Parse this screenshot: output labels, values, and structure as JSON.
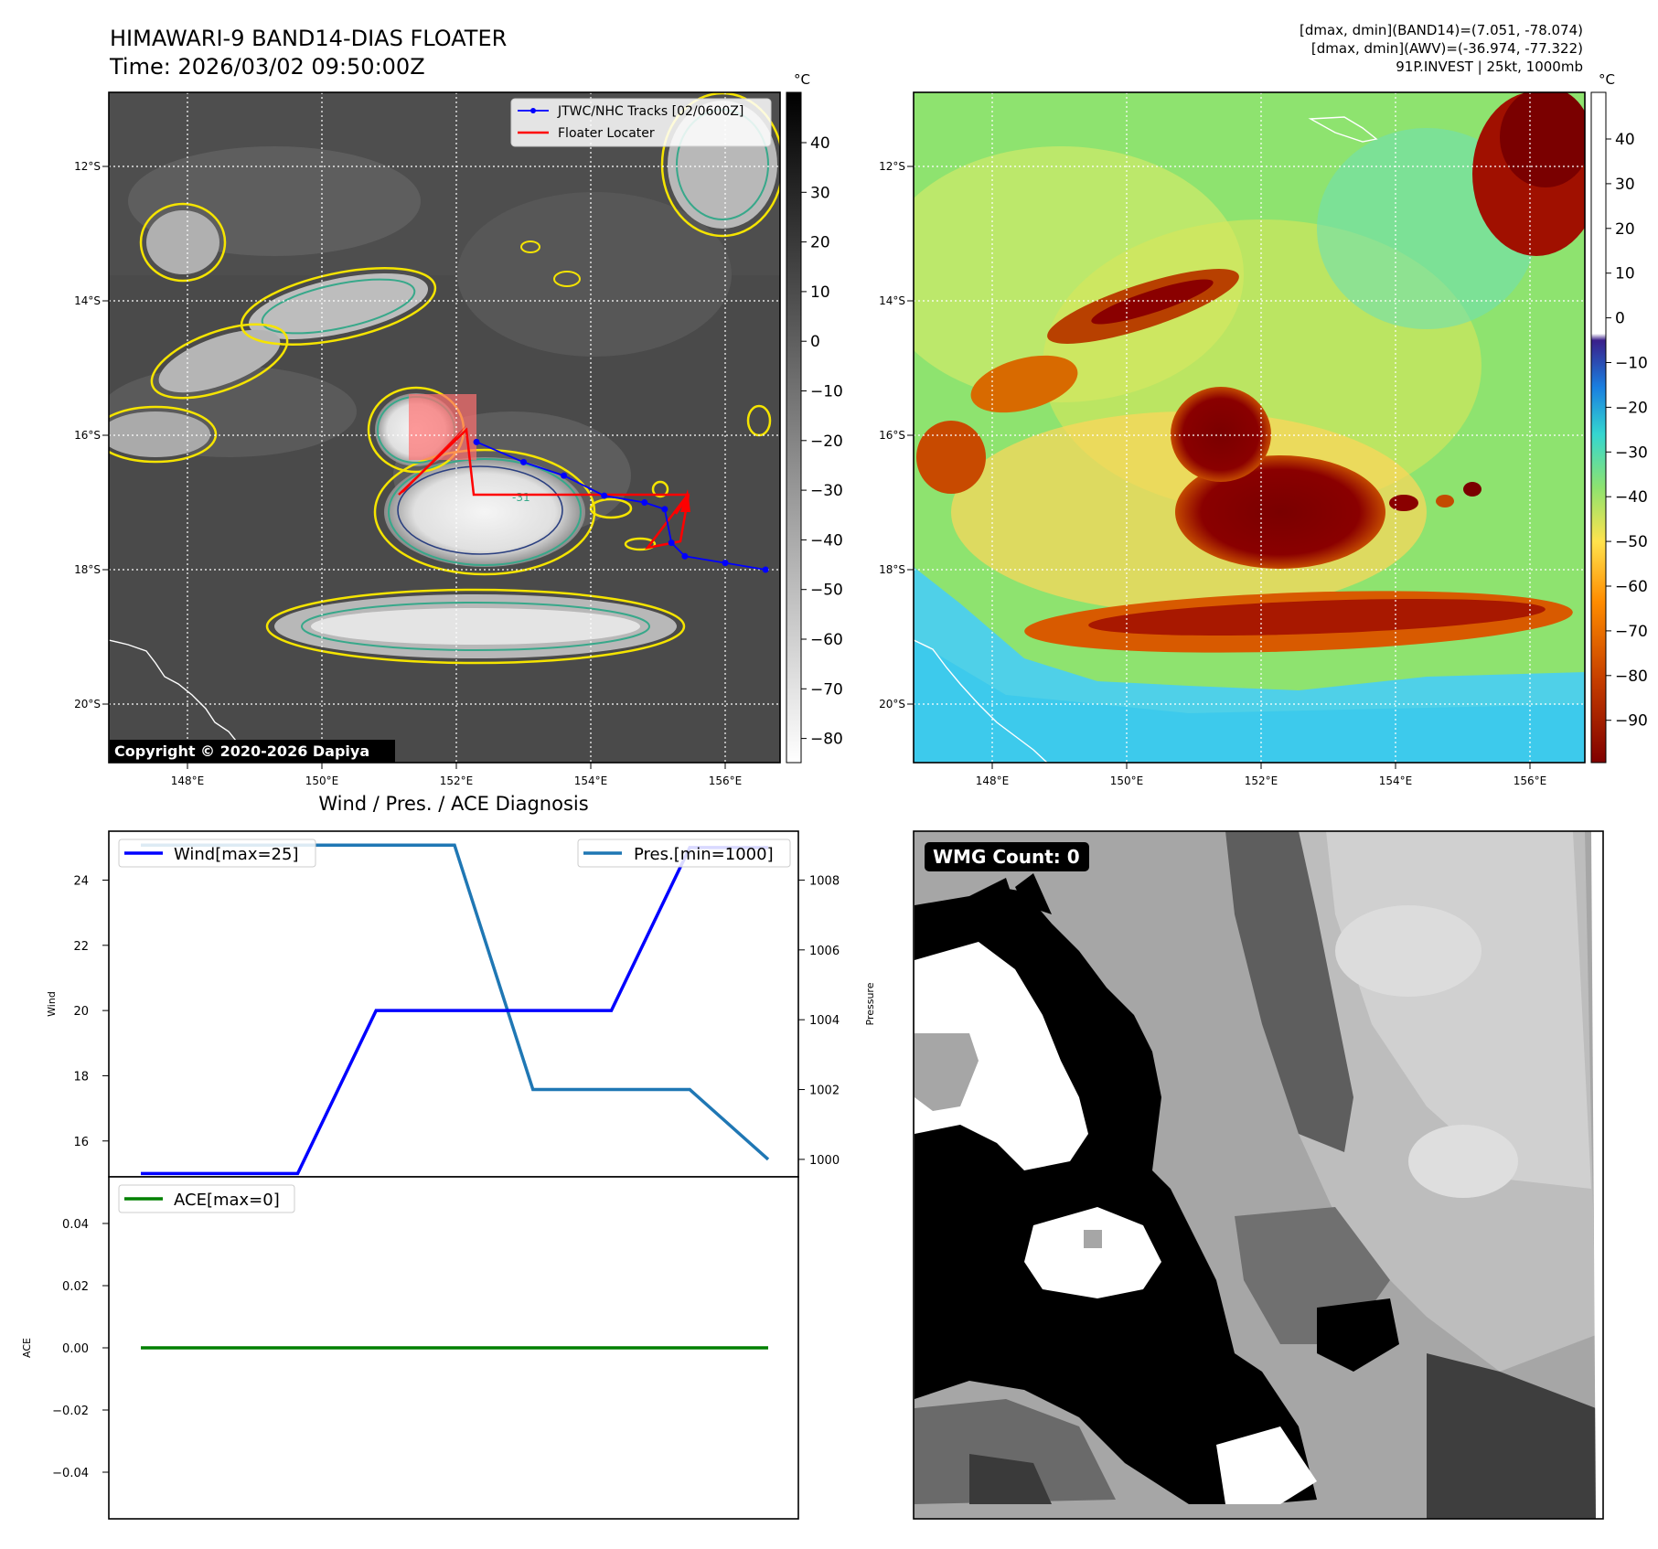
{
  "header": {
    "title_line1": "HIMAWARI-9 BAND14-DIAS FLOATER",
    "title_line2": "Time: 2026/03/02 09:50:00Z",
    "stats_line1": "[dmax, dmin](BAND14)=(7.051, -78.074)",
    "stats_line2": "[dmax, dmin](AWV)=(-36.974, -77.322)",
    "stats_line3": "91P.INVEST | 25kt, 1000mb"
  },
  "copyright": "Copyright © 2020-2026 Dapiya",
  "map": {
    "lon_labels": [
      "148°E",
      "150°E",
      "152°E",
      "154°E",
      "156°E"
    ],
    "lat_labels": [
      "12°S",
      "14°S",
      "16°S",
      "18°S",
      "20°S"
    ],
    "legend": {
      "tracks_label": "JTWC/NHC Tracks [02/0600Z]",
      "locater_label": "Floater Locater",
      "tracks_color": "#0000ff",
      "locater_color": "#ff0000"
    },
    "contour_label": "-31",
    "track_points": [
      [
        152.3,
        -16.1
      ],
      [
        153.0,
        -16.4
      ],
      [
        153.6,
        -16.6
      ],
      [
        154.2,
        -16.9
      ],
      [
        154.8,
        -17.0
      ],
      [
        155.1,
        -17.1
      ],
      [
        155.2,
        -17.6
      ],
      [
        155.4,
        -17.8
      ],
      [
        156.0,
        -17.9
      ],
      [
        156.6,
        -18.0
      ]
    ]
  },
  "colorbars": {
    "unit": "°C",
    "gray_ticks": [
      "40",
      "30",
      "20",
      "10",
      "0",
      "−10",
      "−20",
      "−30",
      "−40",
      "−50",
      "−60",
      "−70",
      "−80"
    ],
    "color_ticks": [
      "40",
      "30",
      "20",
      "10",
      "0",
      "−10",
      "−20",
      "−30",
      "−40",
      "−50",
      "−60",
      "−70",
      "−80",
      "−90"
    ]
  },
  "diag": {
    "title": "Wind / Pres. / ACE Diagnosis",
    "wind_legend": "Wind[max=25]",
    "pres_legend": "Pres.[min=1000]",
    "ace_legend": "ACE[max=0]",
    "wind_ylabel": "Wind",
    "pres_ylabel": "Pressure",
    "ace_ylabel": "ACE",
    "wind_ticks": [
      "24",
      "22",
      "20",
      "18",
      "16"
    ],
    "pres_ticks": [
      "1008",
      "1006",
      "1004",
      "1002",
      "1000"
    ],
    "ace_ticks": [
      "0.04",
      "0.02",
      "0.00",
      "−0.02",
      "−0.04"
    ],
    "wind_color": "#0000ff",
    "pres_color": "#1f77b4",
    "ace_color": "#008000"
  },
  "chart_data": [
    {
      "type": "line",
      "title": "",
      "series": [
        {
          "name": "Wind[max=25]",
          "x": [
            0,
            1,
            2,
            3,
            4,
            5,
            6,
            7,
            8
          ],
          "values": [
            15,
            15,
            15,
            20,
            20,
            20,
            20,
            25,
            25
          ]
        },
        {
          "name": "Pres.[min=1000]",
          "x": [
            0,
            1,
            2,
            3,
            4,
            5,
            6,
            7,
            8
          ],
          "values": [
            1009,
            1009,
            1009,
            1009,
            1009,
            1002,
            1002,
            1002,
            1000
          ]
        }
      ],
      "ylabel": "Wind",
      "y2label": "Pressure",
      "ylim": [
        14.9,
        25.5
      ],
      "y2lim": [
        999.5,
        1009.4
      ]
    },
    {
      "type": "line",
      "title": "",
      "series": [
        {
          "name": "ACE[max=0]",
          "x": [
            0,
            8
          ],
          "values": [
            0,
            0
          ]
        }
      ],
      "ylabel": "ACE",
      "ylim": [
        -0.055,
        0.055
      ]
    }
  ],
  "wmg": {
    "label": "WMG Count: 0"
  }
}
